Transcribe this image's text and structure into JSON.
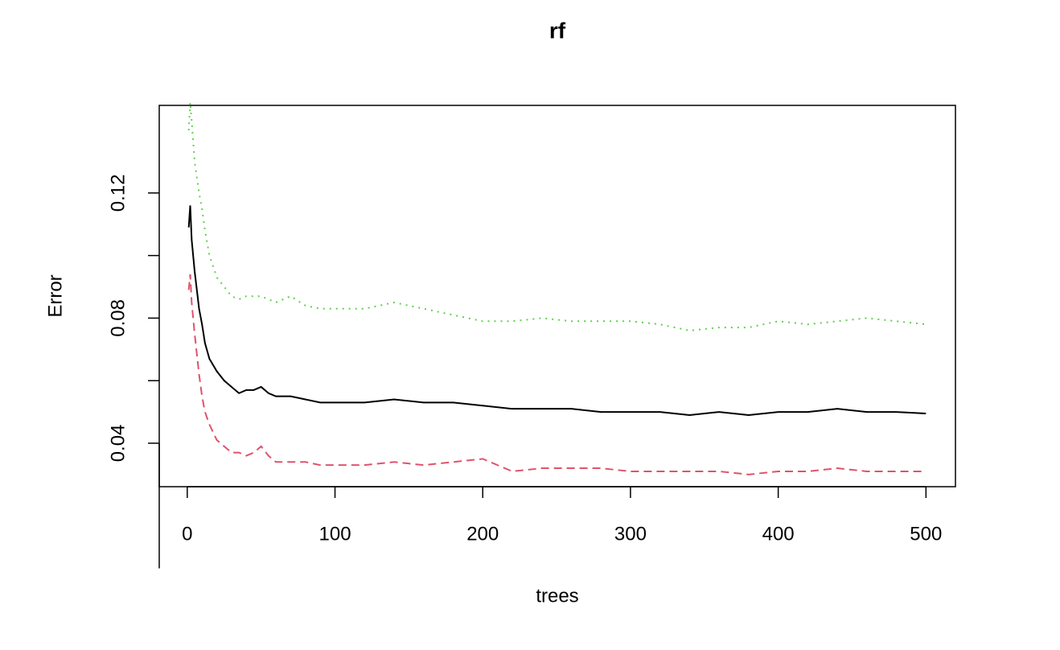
{
  "chart_data": {
    "type": "line",
    "title": "rf",
    "xlabel": "trees",
    "ylabel": "Error",
    "x": [
      1,
      2,
      3,
      5,
      8,
      10,
      12,
      15,
      20,
      25,
      30,
      35,
      40,
      45,
      50,
      55,
      60,
      70,
      80,
      90,
      100,
      120,
      140,
      160,
      180,
      200,
      220,
      240,
      260,
      280,
      300,
      320,
      340,
      360,
      380,
      400,
      420,
      440,
      460,
      480,
      500
    ],
    "series": [
      {
        "color": "#000000",
        "linestyle": "solid",
        "values": [
          0.109,
          0.116,
          0.105,
          0.095,
          0.083,
          0.078,
          0.072,
          0.067,
          0.063,
          0.06,
          0.058,
          0.056,
          0.057,
          0.057,
          0.058,
          0.056,
          0.055,
          0.055,
          0.054,
          0.053,
          0.053,
          0.053,
          0.054,
          0.053,
          0.053,
          0.052,
          0.051,
          0.051,
          0.051,
          0.05,
          0.05,
          0.05,
          0.049,
          0.05,
          0.049,
          0.05,
          0.05,
          0.051,
          0.05,
          0.05,
          0.0495
        ]
      },
      {
        "color": "#DF536B",
        "linestyle": "dashed",
        "values": [
          0.089,
          0.094,
          0.085,
          0.075,
          0.062,
          0.055,
          0.05,
          0.046,
          0.041,
          0.039,
          0.037,
          0.037,
          0.036,
          0.037,
          0.039,
          0.036,
          0.034,
          0.034,
          0.034,
          0.033,
          0.033,
          0.033,
          0.034,
          0.033,
          0.034,
          0.035,
          0.031,
          0.032,
          0.032,
          0.032,
          0.031,
          0.031,
          0.031,
          0.031,
          0.03,
          0.031,
          0.031,
          0.032,
          0.031,
          0.031,
          0.031
        ]
      },
      {
        "color": "#61D04F",
        "linestyle": "dotted",
        "values": [
          0.14,
          0.149,
          0.143,
          0.13,
          0.12,
          0.115,
          0.108,
          0.1,
          0.093,
          0.09,
          0.087,
          0.086,
          0.087,
          0.087,
          0.087,
          0.086,
          0.085,
          0.087,
          0.084,
          0.083,
          0.083,
          0.083,
          0.085,
          0.083,
          0.081,
          0.079,
          0.079,
          0.08,
          0.079,
          0.079,
          0.079,
          0.078,
          0.076,
          0.077,
          0.077,
          0.079,
          0.078,
          0.079,
          0.08,
          0.079,
          0.078
        ]
      }
    ],
    "xlim": [
      -18.96,
      519.96
    ],
    "xticks": [
      0,
      100,
      200,
      300,
      400,
      500
    ],
    "ylim": [
      0.0261,
      0.148
    ],
    "yticks": [
      0.04,
      {
        "value": 0.06,
        "label": null
      },
      0.08,
      {
        "value": 0.1,
        "label": null
      },
      0.12
    ]
  }
}
